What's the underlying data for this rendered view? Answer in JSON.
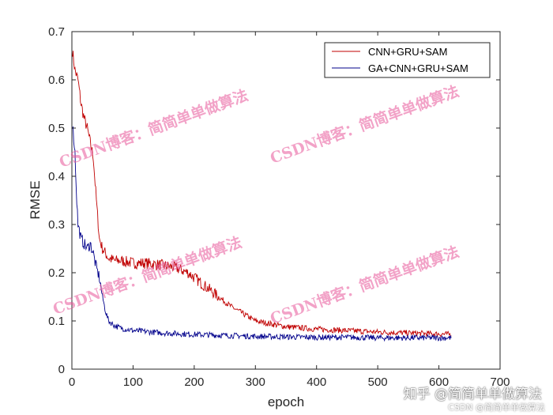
{
  "chart_data": {
    "type": "line",
    "xlabel": "epoch",
    "ylabel": "RMSE",
    "xlim": [
      0,
      700
    ],
    "ylim": [
      0,
      0.7
    ],
    "xticks": [
      0,
      100,
      200,
      300,
      400,
      500,
      600,
      700
    ],
    "yticks": [
      0,
      0.1,
      0.2,
      0.3,
      0.4,
      0.5,
      0.6,
      0.7
    ],
    "grid": false,
    "legend_position": "top-right",
    "series": [
      {
        "name": "CNN+GRU+SAM",
        "color": "#c00000",
        "points": [
          [
            1,
            0.66
          ],
          [
            5,
            0.62
          ],
          [
            10,
            0.6
          ],
          [
            15,
            0.55
          ],
          [
            20,
            0.52
          ],
          [
            25,
            0.5
          ],
          [
            30,
            0.47
          ],
          [
            35,
            0.44
          ],
          [
            40,
            0.35
          ],
          [
            45,
            0.27
          ],
          [
            50,
            0.25
          ],
          [
            60,
            0.23
          ],
          [
            70,
            0.225
          ],
          [
            80,
            0.225
          ],
          [
            100,
            0.22
          ],
          [
            120,
            0.22
          ],
          [
            150,
            0.215
          ],
          [
            170,
            0.21
          ],
          [
            190,
            0.2
          ],
          [
            200,
            0.19
          ],
          [
            220,
            0.17
          ],
          [
            240,
            0.15
          ],
          [
            260,
            0.13
          ],
          [
            280,
            0.115
          ],
          [
            300,
            0.1
          ],
          [
            320,
            0.095
          ],
          [
            350,
            0.088
          ],
          [
            400,
            0.083
          ],
          [
            450,
            0.08
          ],
          [
            500,
            0.077
          ],
          [
            550,
            0.075
          ],
          [
            600,
            0.073
          ],
          [
            620,
            0.072
          ]
        ]
      },
      {
        "name": "GA+CNN+GRU+SAM",
        "color": "#00008b",
        "points": [
          [
            1,
            0.51
          ],
          [
            5,
            0.45
          ],
          [
            8,
            0.35
          ],
          [
            10,
            0.3
          ],
          [
            15,
            0.27
          ],
          [
            20,
            0.26
          ],
          [
            25,
            0.25
          ],
          [
            30,
            0.26
          ],
          [
            35,
            0.24
          ],
          [
            40,
            0.21
          ],
          [
            45,
            0.19
          ],
          [
            50,
            0.15
          ],
          [
            55,
            0.12
          ],
          [
            60,
            0.1
          ],
          [
            70,
            0.09
          ],
          [
            80,
            0.085
          ],
          [
            100,
            0.08
          ],
          [
            150,
            0.075
          ],
          [
            200,
            0.072
          ],
          [
            250,
            0.07
          ],
          [
            300,
            0.068
          ],
          [
            350,
            0.067
          ],
          [
            400,
            0.066
          ],
          [
            450,
            0.066
          ],
          [
            500,
            0.065
          ],
          [
            550,
            0.065
          ],
          [
            600,
            0.065
          ],
          [
            620,
            0.065
          ]
        ]
      }
    ]
  },
  "watermarks": {
    "text": "CSDN博客：简简单单做算法",
    "corner_big": "知乎 @简简单单做算法",
    "corner_small": "CSDN @简简单单做算法"
  }
}
